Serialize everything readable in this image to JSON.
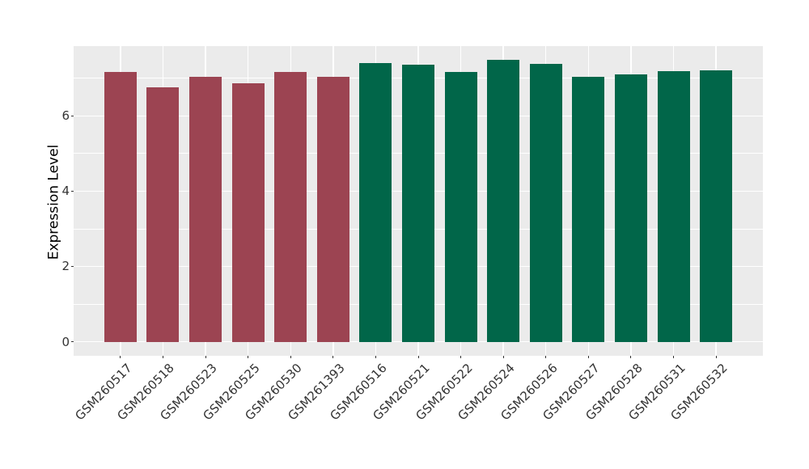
{
  "figure": {
    "background_color": "#FFFFFF",
    "panel_background_color": "#EBEBEB",
    "gridline_color": "#FFFFFF",
    "tick_mark_color": "#333333",
    "axis_text_color": "#333333",
    "axis_title_color": "#000000"
  },
  "chart_data": {
    "type": "bar",
    "title": "",
    "xlabel": "",
    "ylabel": "Expression Level",
    "categories": [
      "GSM260517",
      "GSM260518",
      "GSM260523",
      "GSM260525",
      "GSM260530",
      "GSM261393",
      "GSM260516",
      "GSM260521",
      "GSM260522",
      "GSM260524",
      "GSM260526",
      "GSM260527",
      "GSM260528",
      "GSM260531",
      "GSM260532"
    ],
    "values": [
      7.17,
      6.75,
      7.04,
      6.87,
      7.16,
      7.04,
      7.4,
      7.35,
      7.17,
      7.48,
      7.39,
      7.04,
      7.1,
      7.18,
      7.2
    ],
    "bar_groups": [
      "A",
      "A",
      "A",
      "A",
      "A",
      "A",
      "B",
      "B",
      "B",
      "B",
      "B",
      "B",
      "B",
      "B",
      "B"
    ],
    "group_colors": {
      "A": "#9C4452",
      "B": "#016649"
    },
    "baseline": 0,
    "yticks": [
      0,
      2,
      4,
      6
    ],
    "ytick_labels": [
      "0",
      "2",
      "4",
      "6"
    ],
    "minor_yticks": [
      1,
      3,
      5,
      7
    ],
    "ylim": [
      -0.374,
      7.854
    ],
    "grid": true,
    "legend": "none",
    "x_tick_rotation_deg": 45
  }
}
